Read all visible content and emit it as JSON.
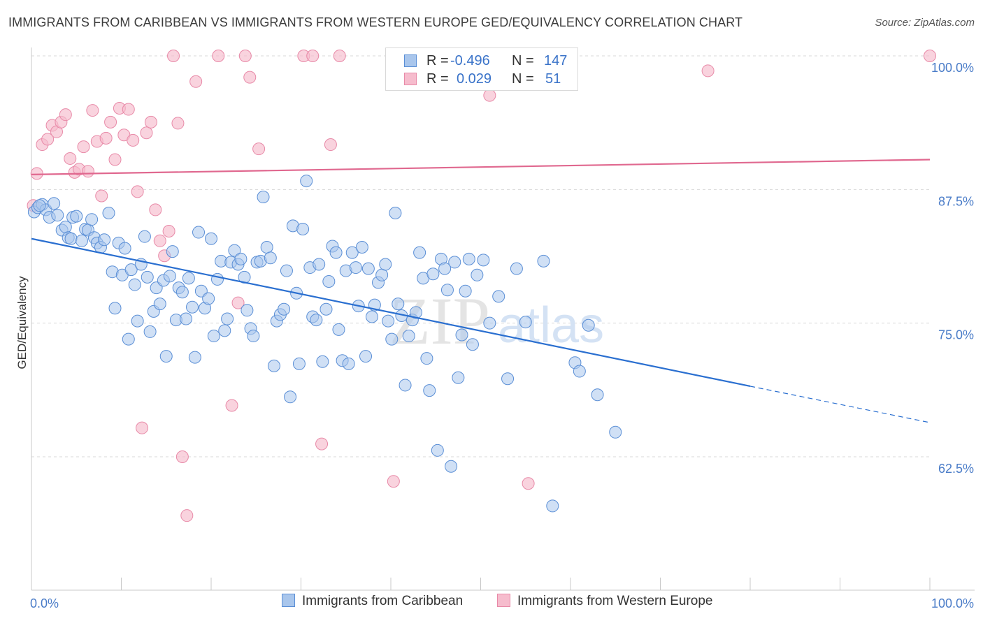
{
  "title": "IMMIGRANTS FROM CARIBBEAN VS IMMIGRANTS FROM WESTERN EUROPE GED/EQUIVALENCY CORRELATION CHART",
  "source": "Source: ZipAtlas.com",
  "watermark": {
    "zip": "ZIP",
    "atlas": "atlas"
  },
  "legend_top": [
    {
      "r_label": "R =",
      "r_value": "-0.496",
      "n_label": "N =",
      "n_value": "147"
    },
    {
      "r_label": "R =",
      "r_value": "0.029",
      "n_label": "N =",
      "n_value": "51"
    }
  ],
  "legend_bottom": [
    {
      "label": "Immigrants from Caribbean"
    },
    {
      "label": "Immigrants from Western Europe"
    }
  ],
  "colors": {
    "blue_fill": "#a9c6ec",
    "blue_stroke": "#5b8fd6",
    "blue_line": "#2a6fd0",
    "pink_fill": "#f6bccd",
    "pink_stroke": "#e88aa8",
    "pink_line": "#e0688f",
    "tick_label": "#4a7cc8",
    "grid": "#d8d8d8"
  },
  "chart_data": {
    "type": "scatter",
    "title": "IMMIGRANTS FROM CARIBBEAN VS IMMIGRANTS FROM WESTERN EUROPE GED/EQUIVALENCY CORRELATION CHART",
    "xlabel": "",
    "ylabel": "GED/Equivalency",
    "xlim": [
      0,
      100
    ],
    "ylim": [
      50,
      102.5
    ],
    "x_tick_labels": [
      "0.0%",
      "100.0%"
    ],
    "y_ticks": [
      100,
      87.5,
      75,
      62.5
    ],
    "y_tick_labels": [
      "100.0%",
      "87.5%",
      "75.0%",
      "62.5%"
    ],
    "grid": "horizontal dashed",
    "legend_position": "top-center",
    "series": [
      {
        "name": "Immigrants from Caribbean",
        "R": -0.496,
        "N": 147,
        "trend": {
          "x0": 0,
          "y0": 82.9,
          "x1": 80,
          "y1": 69.1,
          "dash_to_x": 100,
          "dash_to_y": 65.7
        },
        "points": [
          [
            0.3,
            85.4
          ],
          [
            0.7,
            85.8
          ],
          [
            1.2,
            86.1
          ],
          [
            1.6,
            85.6
          ],
          [
            0.9,
            86.0
          ],
          [
            2.0,
            84.9
          ],
          [
            2.5,
            86.2
          ],
          [
            2.9,
            85.1
          ],
          [
            3.4,
            83.7
          ],
          [
            3.8,
            84.0
          ],
          [
            4.1,
            83.0
          ],
          [
            4.4,
            82.9
          ],
          [
            4.6,
            84.9
          ],
          [
            5.0,
            85.0
          ],
          [
            5.6,
            82.7
          ],
          [
            6.0,
            83.8
          ],
          [
            6.3,
            83.7
          ],
          [
            6.7,
            84.7
          ],
          [
            7.0,
            83.0
          ],
          [
            7.3,
            82.5
          ],
          [
            7.7,
            82.1
          ],
          [
            8.1,
            82.8
          ],
          [
            8.6,
            85.3
          ],
          [
            9.0,
            79.8
          ],
          [
            9.3,
            76.4
          ],
          [
            9.7,
            82.5
          ],
          [
            10.1,
            79.5
          ],
          [
            10.4,
            82.0
          ],
          [
            10.8,
            73.5
          ],
          [
            11.1,
            80.0
          ],
          [
            11.5,
            78.6
          ],
          [
            11.8,
            75.2
          ],
          [
            12.2,
            80.5
          ],
          [
            12.6,
            83.1
          ],
          [
            12.9,
            79.3
          ],
          [
            13.2,
            74.2
          ],
          [
            13.6,
            76.1
          ],
          [
            13.9,
            78.3
          ],
          [
            14.3,
            76.8
          ],
          [
            14.7,
            79.0
          ],
          [
            15.0,
            71.9
          ],
          [
            15.4,
            79.4
          ],
          [
            15.7,
            81.7
          ],
          [
            16.1,
            75.3
          ],
          [
            16.4,
            78.3
          ],
          [
            16.8,
            77.9
          ],
          [
            17.2,
            75.4
          ],
          [
            17.5,
            79.2
          ],
          [
            17.9,
            76.5
          ],
          [
            18.2,
            71.8
          ],
          [
            18.6,
            83.5
          ],
          [
            18.9,
            78.0
          ],
          [
            19.3,
            76.4
          ],
          [
            19.7,
            77.3
          ],
          [
            20.0,
            82.9
          ],
          [
            20.3,
            73.8
          ],
          [
            20.7,
            79.1
          ],
          [
            21.1,
            80.8
          ],
          [
            21.5,
            74.3
          ],
          [
            21.8,
            75.4
          ],
          [
            22.2,
            80.7
          ],
          [
            22.6,
            81.8
          ],
          [
            23.0,
            80.5
          ],
          [
            23.3,
            81.0
          ],
          [
            23.7,
            79.3
          ],
          [
            24.0,
            76.2
          ],
          [
            24.4,
            74.5
          ],
          [
            24.7,
            73.8
          ],
          [
            25.1,
            80.7
          ],
          [
            25.5,
            80.8
          ],
          [
            25.8,
            86.8
          ],
          [
            26.2,
            82.1
          ],
          [
            26.6,
            81.1
          ],
          [
            27.0,
            71.0
          ],
          [
            27.3,
            75.2
          ],
          [
            27.7,
            75.8
          ],
          [
            28.1,
            76.3
          ],
          [
            28.4,
            79.9
          ],
          [
            28.8,
            68.1
          ],
          [
            29.1,
            84.1
          ],
          [
            29.5,
            77.8
          ],
          [
            29.8,
            71.2
          ],
          [
            30.2,
            83.8
          ],
          [
            30.6,
            88.3
          ],
          [
            31.0,
            80.2
          ],
          [
            31.3,
            75.6
          ],
          [
            31.7,
            75.3
          ],
          [
            32.0,
            80.5
          ],
          [
            32.4,
            71.4
          ],
          [
            32.8,
            76.3
          ],
          [
            33.1,
            78.9
          ],
          [
            33.5,
            82.2
          ],
          [
            33.9,
            81.6
          ],
          [
            34.2,
            74.4
          ],
          [
            34.6,
            71.5
          ],
          [
            35.0,
            79.9
          ],
          [
            35.3,
            71.2
          ],
          [
            35.7,
            81.6
          ],
          [
            36.1,
            80.2
          ],
          [
            36.4,
            76.6
          ],
          [
            36.8,
            82.1
          ],
          [
            37.2,
            71.9
          ],
          [
            37.5,
            80.1
          ],
          [
            37.9,
            75.6
          ],
          [
            38.2,
            76.7
          ],
          [
            38.6,
            78.8
          ],
          [
            39.0,
            79.5
          ],
          [
            39.4,
            80.5
          ],
          [
            39.7,
            75.2
          ],
          [
            40.1,
            73.5
          ],
          [
            40.5,
            85.3
          ],
          [
            40.8,
            76.8
          ],
          [
            41.2,
            75.7
          ],
          [
            41.6,
            69.2
          ],
          [
            42.0,
            73.8
          ],
          [
            42.4,
            75.3
          ],
          [
            42.8,
            76.0
          ],
          [
            43.2,
            81.6
          ],
          [
            43.6,
            79.2
          ],
          [
            44.0,
            71.7
          ],
          [
            44.3,
            68.7
          ],
          [
            44.7,
            79.6
          ],
          [
            45.2,
            63.1
          ],
          [
            45.6,
            81.0
          ],
          [
            46.0,
            80.1
          ],
          [
            46.3,
            78.1
          ],
          [
            46.7,
            61.6
          ],
          [
            47.1,
            80.7
          ],
          [
            47.5,
            69.9
          ],
          [
            47.9,
            73.9
          ],
          [
            48.3,
            78.0
          ],
          [
            48.7,
            81.0
          ],
          [
            49.1,
            73.0
          ],
          [
            49.6,
            79.5
          ],
          [
            50.3,
            80.9
          ],
          [
            51.0,
            75.0
          ],
          [
            52.0,
            77.5
          ],
          [
            53.0,
            69.8
          ],
          [
            54.0,
            80.1
          ],
          [
            55.0,
            75.1
          ],
          [
            57.0,
            80.8
          ],
          [
            58.0,
            57.9
          ],
          [
            60.5,
            71.3
          ],
          [
            61.0,
            70.5
          ],
          [
            62.0,
            74.8
          ],
          [
            63.0,
            68.3
          ],
          [
            65.0,
            64.8
          ]
        ]
      },
      {
        "name": "Immigrants from Western Europe",
        "R": 0.029,
        "N": 51,
        "trend": {
          "x0": 0,
          "y0": 88.9,
          "x1": 100,
          "y1": 90.3
        },
        "points": [
          [
            0.2,
            86.0
          ],
          [
            0.6,
            89.0
          ],
          [
            1.2,
            91.7
          ],
          [
            1.8,
            92.2
          ],
          [
            2.3,
            93.5
          ],
          [
            2.8,
            92.9
          ],
          [
            3.3,
            93.8
          ],
          [
            3.8,
            94.5
          ],
          [
            4.3,
            90.4
          ],
          [
            4.8,
            89.1
          ],
          [
            5.3,
            89.4
          ],
          [
            5.8,
            91.5
          ],
          [
            6.3,
            89.2
          ],
          [
            6.8,
            94.9
          ],
          [
            7.3,
            92.0
          ],
          [
            7.8,
            86.9
          ],
          [
            8.3,
            92.3
          ],
          [
            8.8,
            93.8
          ],
          [
            9.3,
            90.3
          ],
          [
            9.8,
            95.1
          ],
          [
            10.3,
            92.6
          ],
          [
            10.8,
            95.0
          ],
          [
            11.3,
            92.1
          ],
          [
            11.8,
            87.3
          ],
          [
            12.3,
            65.2
          ],
          [
            12.8,
            92.8
          ],
          [
            13.3,
            93.8
          ],
          [
            13.8,
            85.6
          ],
          [
            14.3,
            82.7
          ],
          [
            14.8,
            81.3
          ],
          [
            15.3,
            83.6
          ],
          [
            15.8,
            100.0
          ],
          [
            16.3,
            93.7
          ],
          [
            16.8,
            62.5
          ],
          [
            17.3,
            57.0
          ],
          [
            18.3,
            97.6
          ],
          [
            20.8,
            100.0
          ],
          [
            22.3,
            67.3
          ],
          [
            23.0,
            76.9
          ],
          [
            23.8,
            100.0
          ],
          [
            24.3,
            98.0
          ],
          [
            25.3,
            91.3
          ],
          [
            30.3,
            100.0
          ],
          [
            31.3,
            100.0
          ],
          [
            32.3,
            63.7
          ],
          [
            33.3,
            91.7
          ],
          [
            34.3,
            100.0
          ],
          [
            40.3,
            60.2
          ],
          [
            51.0,
            96.3
          ],
          [
            55.3,
            60.0
          ],
          [
            75.3,
            98.6
          ],
          [
            100.0,
            100.0
          ]
        ]
      }
    ]
  }
}
